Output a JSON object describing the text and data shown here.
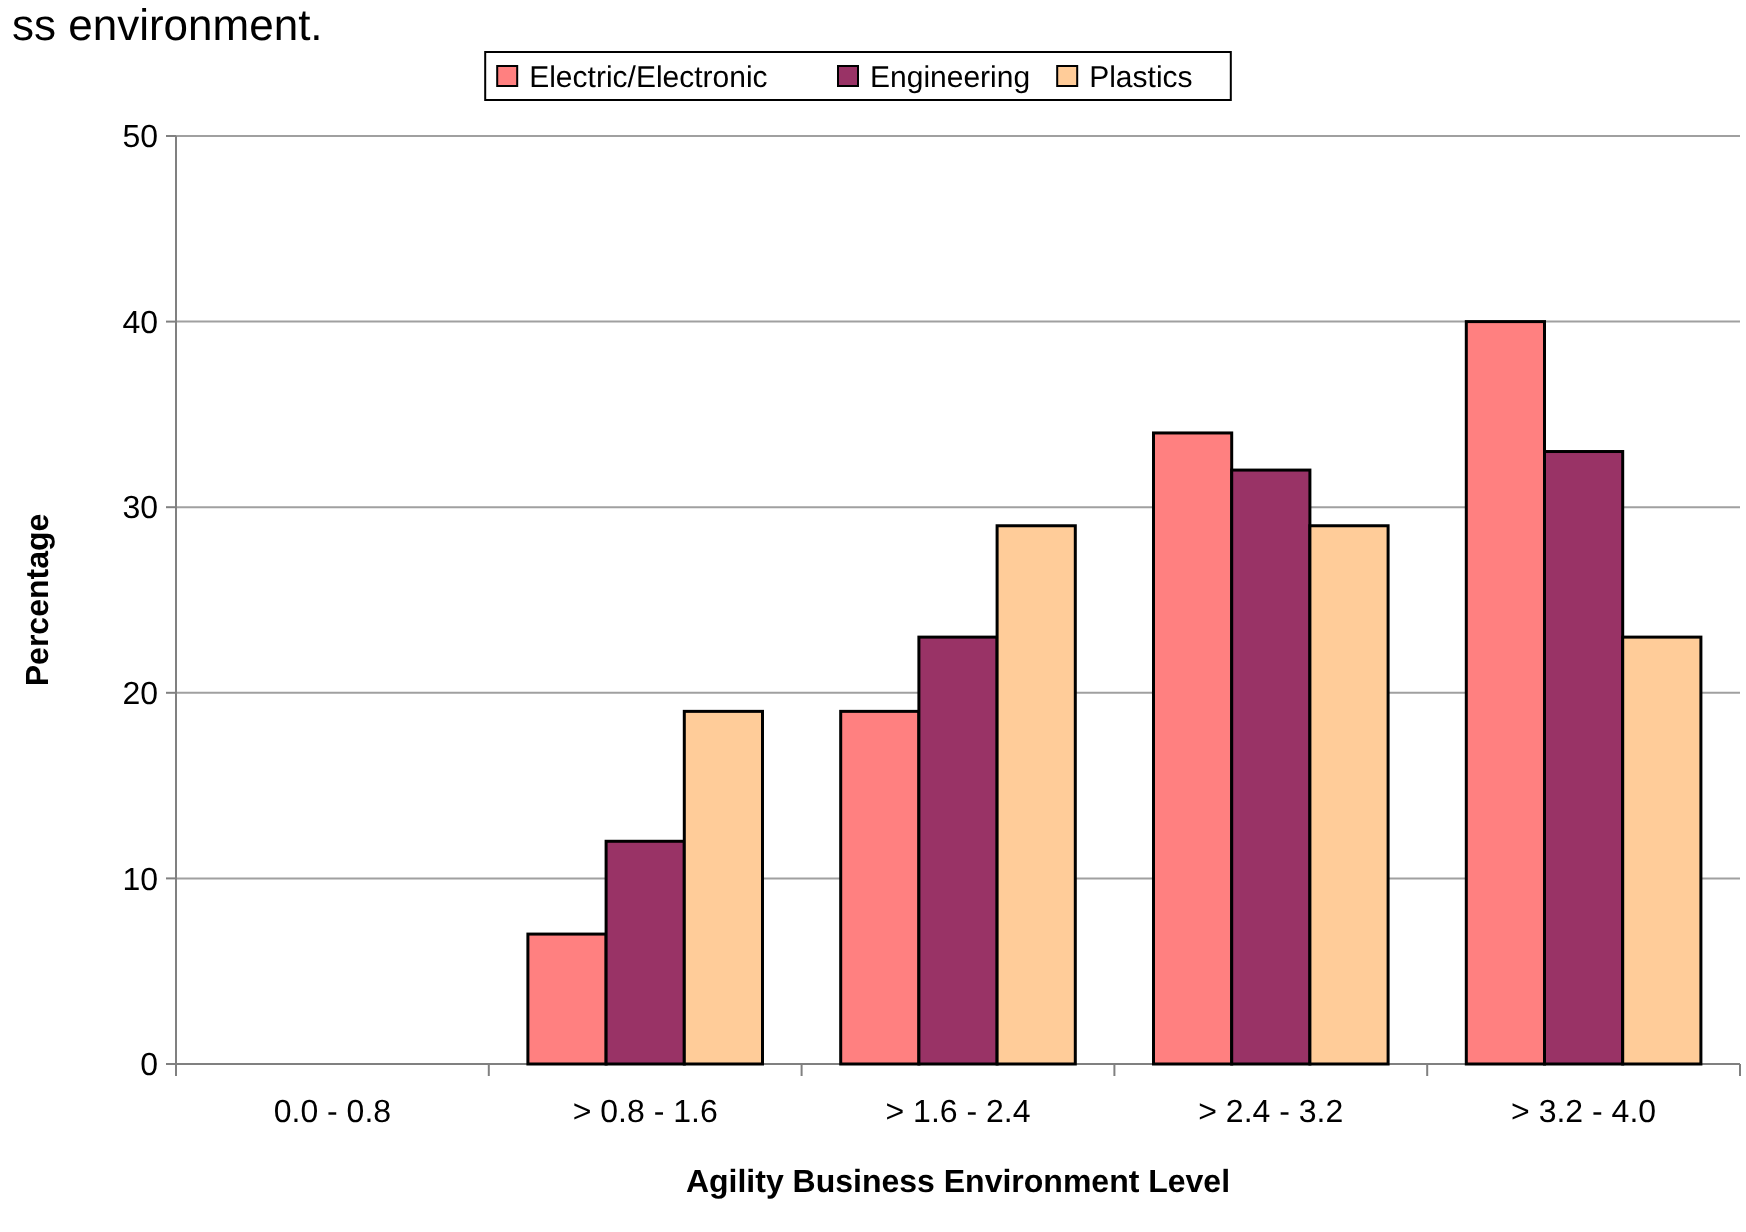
{
  "chart_data": {
    "type": "bar",
    "xlabel": "Agility Business Environment Level",
    "ylabel": "Percentage",
    "annotations": [
      "ss environment."
    ],
    "categories": [
      "0.0 - 0.8",
      "> 0.8 - 1.6",
      "> 1.6 - 2.4",
      "> 2.4 - 3.2",
      "> 3.2 - 4.0"
    ],
    "series": [
      {
        "name": "Electric/Electronic",
        "color": "#ff8080",
        "values": [
          0,
          7,
          19,
          34,
          40
        ]
      },
      {
        "name": "Engineering",
        "color": "#993366",
        "values": [
          0,
          12,
          23,
          32,
          33
        ]
      },
      {
        "name": "Plastics",
        "color": "#ffcc99",
        "values": [
          0,
          19,
          29,
          29,
          23
        ]
      }
    ],
    "ylim": [
      0,
      50
    ],
    "yticks": [
      0,
      10,
      20,
      30,
      40,
      50
    ],
    "grid": "y",
    "legend": "top"
  }
}
